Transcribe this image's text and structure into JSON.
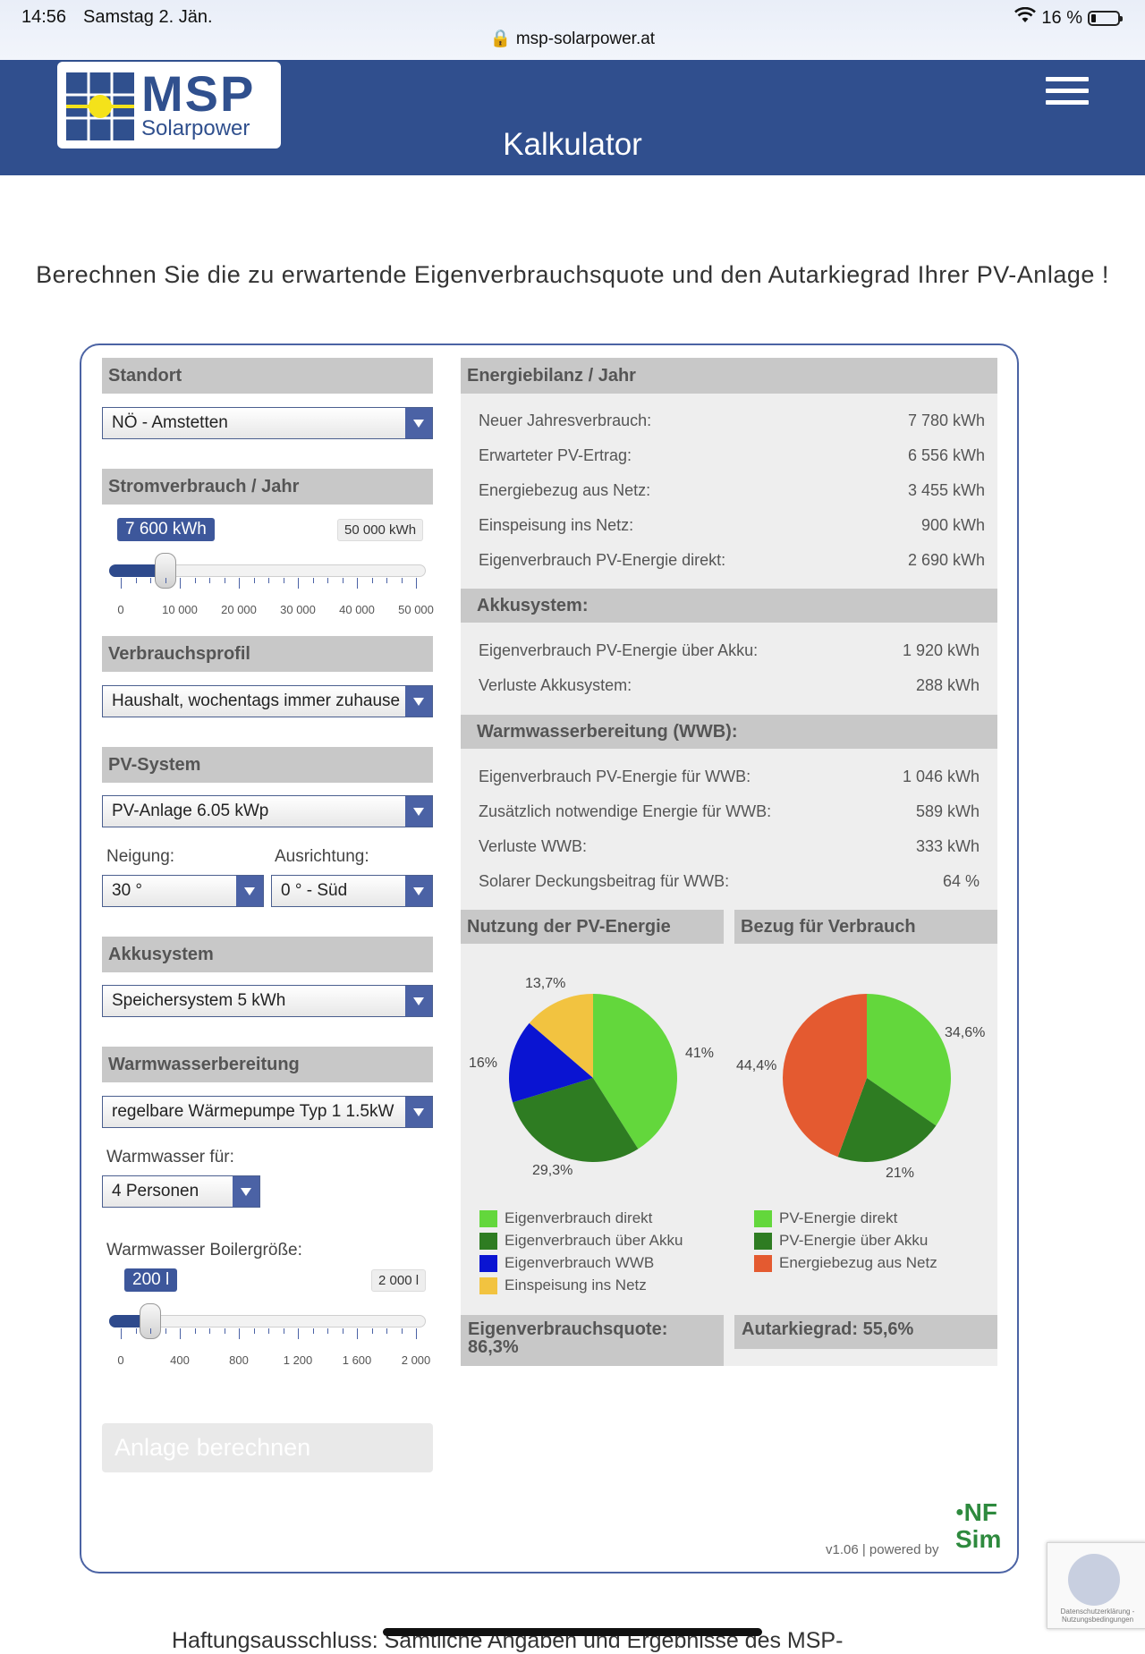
{
  "status_bar": {
    "time": "14:56",
    "date": "Samstag 2. Jän.",
    "url": "msp-solarpower.at",
    "battery": "16 %"
  },
  "header": {
    "logo_main": "MSP",
    "logo_sub": "Solarpower",
    "title": "Kalkulator",
    "menu_icon": "hamburger-menu-icon"
  },
  "intro": "Berechnen Sie die zu erwartende Eigenverbrauchsquote und den Autarkiegrad Ihrer PV-Anlage !",
  "left": {
    "standort": {
      "title": "Standort",
      "value": "NÖ - Amstetten"
    },
    "strom": {
      "title": "Stromverbrauch / Jahr",
      "current": "7 600 kWh",
      "max": "50 000 kWh",
      "level": 0.152,
      "ticks": [
        "0",
        "10 000",
        "20 000",
        "30 000",
        "40 000",
        "50 000"
      ]
    },
    "profil": {
      "title": "Verbrauchsprofil",
      "value": "Haushalt, wochentags immer zuhause"
    },
    "pv": {
      "title": "PV-System",
      "value": "PV-Anlage 6.05 kWp",
      "neigung_label": "Neigung:",
      "neigung_value": "30 °",
      "ausrichtung_label": "Ausrichtung:",
      "ausrichtung_value": "0 ° - Süd"
    },
    "akku": {
      "title": "Akkusystem",
      "value": "Speichersystem 5 kWh"
    },
    "wwb": {
      "title": "Warmwasserbereitung",
      "value": "regelbare Wärmepumpe Typ 1 1.5kW",
      "fuer_label": "Warmwasser für:",
      "fuer_value": "4 Personen",
      "boiler_label": "Warmwasser Boilergröße:",
      "boiler_current": "200 l",
      "boiler_max": "2 000 l",
      "level": 0.1,
      "ticks": [
        "0",
        "400",
        "800",
        "1 200",
        "1 600",
        "2 000"
      ]
    },
    "button": "Anlage berechnen"
  },
  "right": {
    "energie": {
      "title": "Energiebilanz / Jahr",
      "rows": [
        {
          "label": "Neuer Jahresverbrauch:",
          "value": "7 780 kWh"
        },
        {
          "label": "Erwarteter PV-Ertrag:",
          "value": "6 556 kWh"
        },
        {
          "label": "Energiebezug aus Netz:",
          "value": "3 455 kWh"
        },
        {
          "label": "Einspeisung ins Netz:",
          "value": "900 kWh"
        },
        {
          "label": "Eigenverbrauch PV-Energie direkt:",
          "value": "2 690 kWh"
        }
      ]
    },
    "akku": {
      "title": "Akkusystem:",
      "rows": [
        {
          "label": "Eigenverbrauch PV-Energie über Akku:",
          "value": "1 920 kWh"
        },
        {
          "label": "Verluste Akkusystem:",
          "value": "288 kWh"
        }
      ]
    },
    "wwb": {
      "title": "Warmwasserbereitung (WWB):",
      "rows": [
        {
          "label": "Eigenverbrauch PV-Energie für WWB:",
          "value": "1 046 kWh"
        },
        {
          "label": "Zusätzlich notwendige Energie für WWB:",
          "value": "589 kWh"
        },
        {
          "label": "Verluste WWB:",
          "value": "333 kWh"
        },
        {
          "label": "Solarer Deckungsbeitrag für WWB:",
          "value": "64 %"
        }
      ]
    },
    "pie1_title": "Nutzung der PV-Energie",
    "pie2_title": "Bezug für Verbrauch",
    "quote": "Eigenverbrauchsquote: 86,3%",
    "autarkie": "Autarkiegrad: 55,6%"
  },
  "chart_data": [
    {
      "type": "pie",
      "title": "Nutzung der PV-Energie",
      "slices": [
        {
          "name": "Eigenverbrauch direkt",
          "value": 41,
          "label": "41%",
          "color": "#63d73c"
        },
        {
          "name": "Eigenverbrauch über Akku",
          "value": 29.3,
          "label": "29,3%",
          "color": "#2e7c22"
        },
        {
          "name": "Eigenverbrauch WWB",
          "value": 16,
          "label": "16%",
          "color": "#0a14d2"
        },
        {
          "name": "Einspeisung ins Netz",
          "value": 13.7,
          "label": "13,7%",
          "color": "#f2c340"
        }
      ]
    },
    {
      "type": "pie",
      "title": "Bezug für Verbrauch",
      "slices": [
        {
          "name": "PV-Energie direkt",
          "value": 34.6,
          "label": "34,6%",
          "color": "#63d73c"
        },
        {
          "name": "PV-Energie über Akku",
          "value": 21,
          "label": "21%",
          "color": "#2e7c22"
        },
        {
          "name": "Energiebezug aus Netz",
          "value": 44.4,
          "label": "44,4%",
          "color": "#e45a30"
        }
      ]
    }
  ],
  "footer": {
    "version": "v1.06 | powered by",
    "brand_line1": "NF",
    "brand_line2": "Sim",
    "recaptcha_text": "Datenschutzerklärung - Nutzungsbedingungen",
    "disclaimer": "Haftungsausschluss: Sämtliche Angaben und Ergebnisse des MSP-"
  }
}
